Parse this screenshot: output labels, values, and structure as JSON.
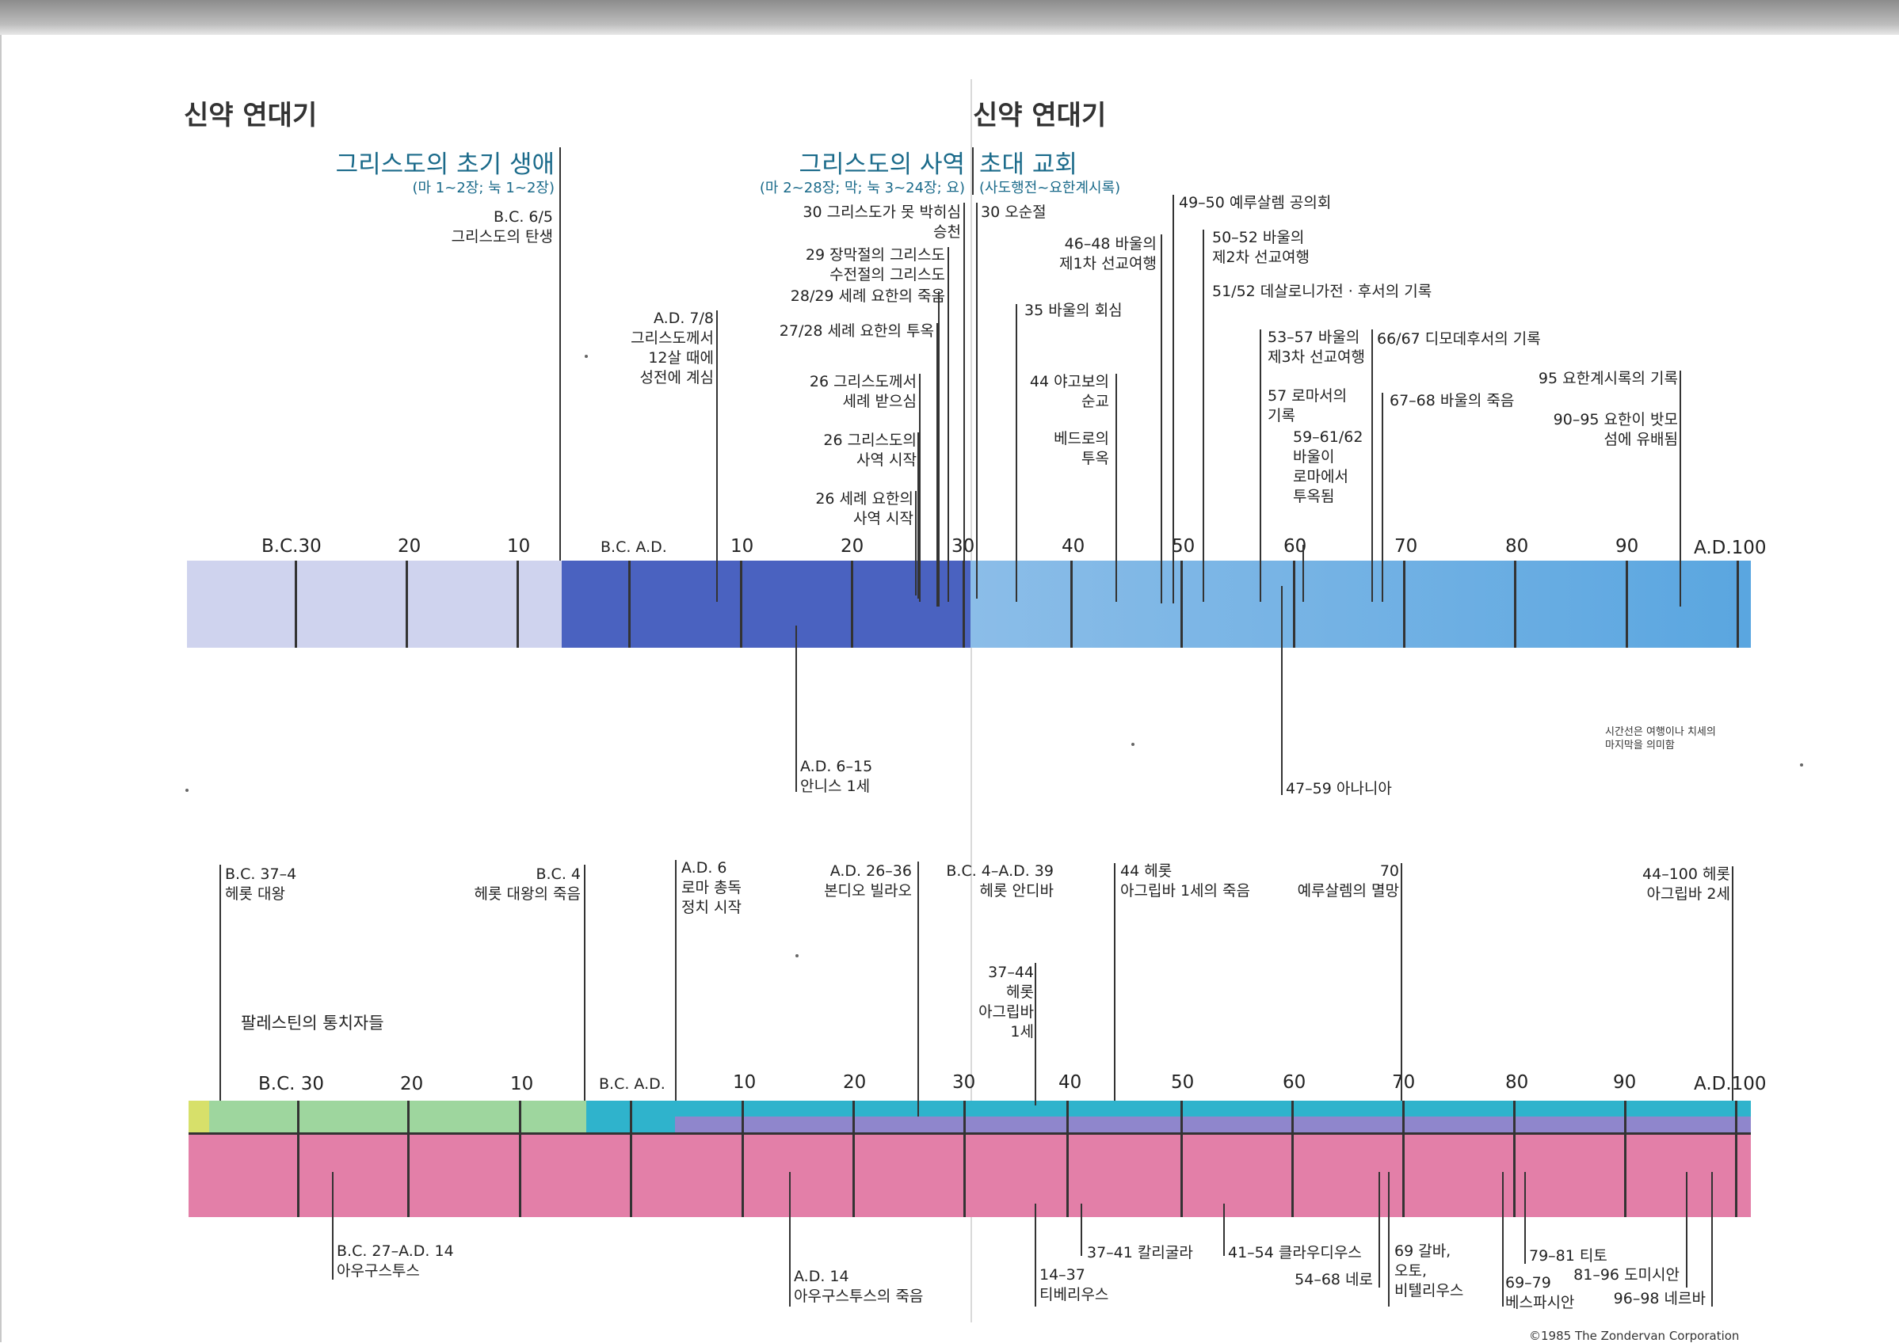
{
  "titles": {
    "left": "신약 연대기",
    "right": "신약 연대기"
  },
  "sections": {
    "early_life": {
      "title": "그리스도의 초기 생애",
      "sub": "(마 1~2장; 눅 1~2장)"
    },
    "ministry": {
      "title": "그리스도의 사역",
      "sub": "(마 2~28장; 막; 눅 3~24장; 요)"
    },
    "early_church": {
      "title": "초대 교회",
      "sub": "(사도행전~요한계시록)"
    }
  },
  "timeline1": {
    "axis": {
      "bc30": "B.C.30",
      "bc20": "20",
      "bc10": "10",
      "bcad": "B.C. A.D.",
      "ad10": "10",
      "ad20": "20",
      "ad30": "30",
      "ad40": "40",
      "ad50": "50",
      "ad60": "60",
      "ad70": "70",
      "ad80": "80",
      "ad90": "90",
      "ad100": "A.D.100"
    },
    "events": {
      "birth": "B.C. 6/5\n그리스도의 탄생",
      "temple": "A.D. 7/8\n그리스도께서\n12살 때에\n성전에 계심",
      "crucified": "30 그리스도가 못 박히심\n승천",
      "tabernacles": "29 장막절의 그리스도\n수전절의 그리스도",
      "john_death": "28/29 세례 요한의 죽음",
      "john_prison": "27/28 세례 요한의 투옥",
      "baptized": "26 그리스도께서\n세례 받으심",
      "ministry_start": "26 그리스도의\n사역 시작",
      "john_ministry": "26 세례 요한의\n사역 시작",
      "pentecost": "30 오순절",
      "paul_conversion": "35 바울의 회심",
      "james": "44 야고보의\n순교",
      "peter": "베드로의\n투옥",
      "journey1": "46–48 바울의\n제1차 선교여행",
      "council": "49–50 예루살렘 공의회",
      "journey2": "50–52 바울의\n제2차 선교여행",
      "thess": "51/52 데살로니가전 · 후서의 기록",
      "journey3": "53–57 바울의\n제3차 선교여행",
      "romans": "57 로마서의\n기록",
      "rome_prison": "59–61/62\n바울이\n로마에서\n투옥됨",
      "timothy": "66/67 디모데후서의 기록",
      "paul_death": "67–68 바울의 죽음",
      "revelation": "95 요한계시록의 기록",
      "patmos": "90–95 요한이 밧모\n섬에 유배됨",
      "annas": "A.D. 6–15\n안니스 1세",
      "ananias": "47–59 아나니아"
    },
    "note": "시간선은 여행이나 치세의\n마지막을 의미함"
  },
  "timeline2": {
    "title": "팔레스틴의 통치자들",
    "axis": {
      "bc30": "B.C.  30",
      "bc20": "20",
      "bc10": "10",
      "bcad": "B.C. A.D.",
      "ad10": "10",
      "ad20": "20",
      "ad30": "30",
      "ad40": "40",
      "ad50": "50",
      "ad60": "60",
      "ad70": "70",
      "ad80": "80",
      "ad90": "90",
      "ad100": "A.D.100"
    },
    "rulers": {
      "herod_great": "B.C. 37–4\n헤롯 대왕",
      "herod_death": "B.C. 4\n헤롯 대왕의 죽음",
      "roman": "A.D. 6\n로마 총독\n정치 시작",
      "pilate": "A.D. 26–36\n본디오 빌라오",
      "antipas": "B.C. 4–A.D. 39\n헤롯 안디바",
      "agrippa1": "37–44\n헤롯\n아그립바\n1세",
      "agrippa_death": "44 헤롯\n아그립바 1세의 죽음",
      "jerusalem": "70\n예루살렘의 멸망",
      "agrippa2": "44–100 헤롯\n아그립바 2세",
      "augustus": "B.C. 27–A.D. 14\n아우구스투스",
      "augustus_death": "A.D. 14\n아우구스투스의 죽음",
      "tiberius": "14–37\n티베리우스",
      "caligula": "37–41 칼리굴라",
      "claudius": "41–54 클라우디우스",
      "nero": "54–68 네로",
      "galba": "69 갈바,\n오토,\n비텔리우스",
      "vespasian": "69–79\n베스파시안",
      "titus": "79–81 티토",
      "domitian": "81–96 도미시안",
      "nerva": "96–98 네르바"
    }
  },
  "colors": {
    "bc_band": "#cfd3ee",
    "ad_band_dark": "#4a62c0",
    "ad_band_light": "#6aaee2",
    "rulers_green": "#9ed69e",
    "rulers_teal": "#2fb3cc",
    "rulers_purple": "#8f86cc",
    "rulers_pink": "#e37fa8",
    "accent_title": "#1a6a8a"
  },
  "footer": "©1985 The Zondervan Corporation"
}
